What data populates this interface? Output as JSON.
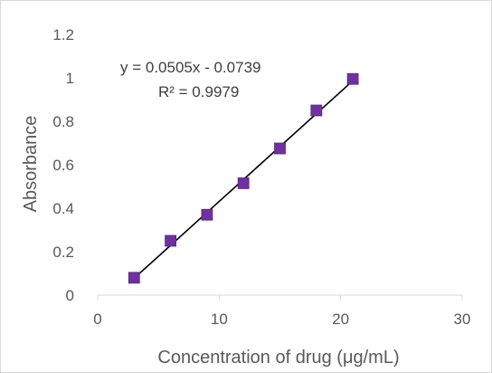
{
  "chart_data": {
    "type": "scatter",
    "xlabel": "Concentration of drug (μg/mL)",
    "ylabel": "Absorbance",
    "xlim": [
      0,
      30
    ],
    "ylim": [
      0,
      1.2
    ],
    "x_ticks": [
      "0",
      "10",
      "20",
      "30"
    ],
    "y_ticks": [
      "0",
      "0.2",
      "0.4",
      "0.6",
      "0.8",
      "1",
      "1.2"
    ],
    "grid": false,
    "legend": "none",
    "series": [
      {
        "marker": "square",
        "color": "#7030a0",
        "x": [
          3,
          6,
          9,
          12,
          15,
          18,
          21
        ],
        "y": [
          0.08,
          0.25,
          0.37,
          0.515,
          0.675,
          0.85,
          0.995
        ]
      }
    ],
    "trendline": {
      "type": "linear",
      "slope": 0.0505,
      "intercept": -0.0739,
      "x_range": [
        3,
        21
      ],
      "color": "#000000",
      "equation": "y = 0.0505x - 0.0739",
      "r_squared": "R² = 0.9979"
    }
  }
}
